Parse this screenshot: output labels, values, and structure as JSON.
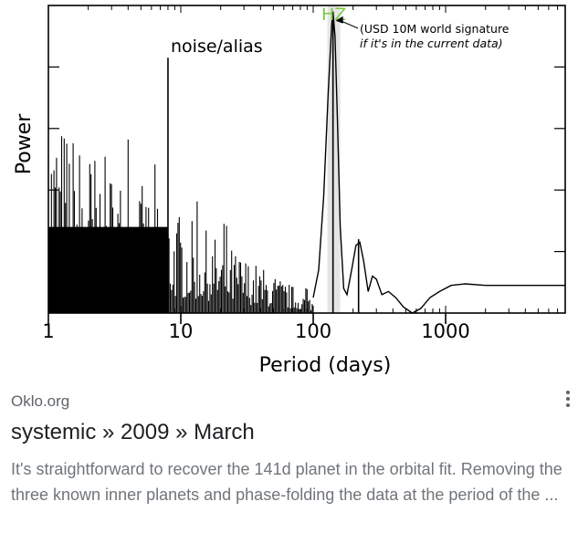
{
  "result": {
    "source": "Oklo.org",
    "title": "systemic » 2009 » March",
    "snippet": "It's straightforward to recover the 141d planet in the orbital fit. Removing the three known inner planets and phase-folding the data at the period of the ..."
  },
  "chart_data": {
    "type": "line",
    "xlabel": "Period (days)",
    "ylabel": "Power",
    "xscale": "log",
    "xlim": [
      1,
      8000
    ],
    "ylim": [
      0,
      1
    ],
    "xticks": [
      {
        "value": 1,
        "label": "1"
      },
      {
        "value": 10,
        "label": "10"
      },
      {
        "value": 100,
        "label": "100"
      },
      {
        "value": 1000,
        "label": "1000"
      }
    ],
    "hz_band": {
      "label": "HZ",
      "from": 128,
      "to": 160,
      "color": "#e5e5e5",
      "label_color": "#7ac943"
    },
    "annotations": [
      {
        "text": "noise/alias",
        "x": 8,
        "y": 0.89
      },
      {
        "text": "(USD 10M world signature",
        "line2": "if it's in the current data)",
        "x": 145,
        "y": 0.95
      }
    ],
    "peaks": [
      {
        "x": 141,
        "y": 0.98
      },
      {
        "x": 8,
        "y": 0.83
      },
      {
        "x": 220,
        "y": 0.24
      }
    ],
    "noise_band": {
      "from": 1,
      "to": 100,
      "level_start": 0.7,
      "level_end": 0.05
    },
    "curve": [
      [
        100,
        0.05
      ],
      [
        110,
        0.14
      ],
      [
        120,
        0.38
      ],
      [
        130,
        0.72
      ],
      [
        138,
        0.94
      ],
      [
        141,
        0.98
      ],
      [
        146,
        0.9
      ],
      [
        153,
        0.6
      ],
      [
        160,
        0.28
      ],
      [
        170,
        0.08
      ],
      [
        180,
        0.06
      ],
      [
        195,
        0.14
      ],
      [
        210,
        0.22
      ],
      [
        225,
        0.23
      ],
      [
        240,
        0.17
      ],
      [
        260,
        0.07
      ],
      [
        280,
        0.12
      ],
      [
        300,
        0.11
      ],
      [
        330,
        0.06
      ],
      [
        370,
        0.07
      ],
      [
        420,
        0.05
      ],
      [
        480,
        0.02
      ],
      [
        560,
        0.0
      ],
      [
        650,
        0.015
      ],
      [
        760,
        0.05
      ],
      [
        900,
        0.07
      ],
      [
        1100,
        0.09
      ],
      [
        1400,
        0.095
      ],
      [
        2000,
        0.09
      ],
      [
        3000,
        0.09
      ],
      [
        5000,
        0.09
      ],
      [
        8000,
        0.09
      ]
    ],
    "line_color": "#000000"
  }
}
